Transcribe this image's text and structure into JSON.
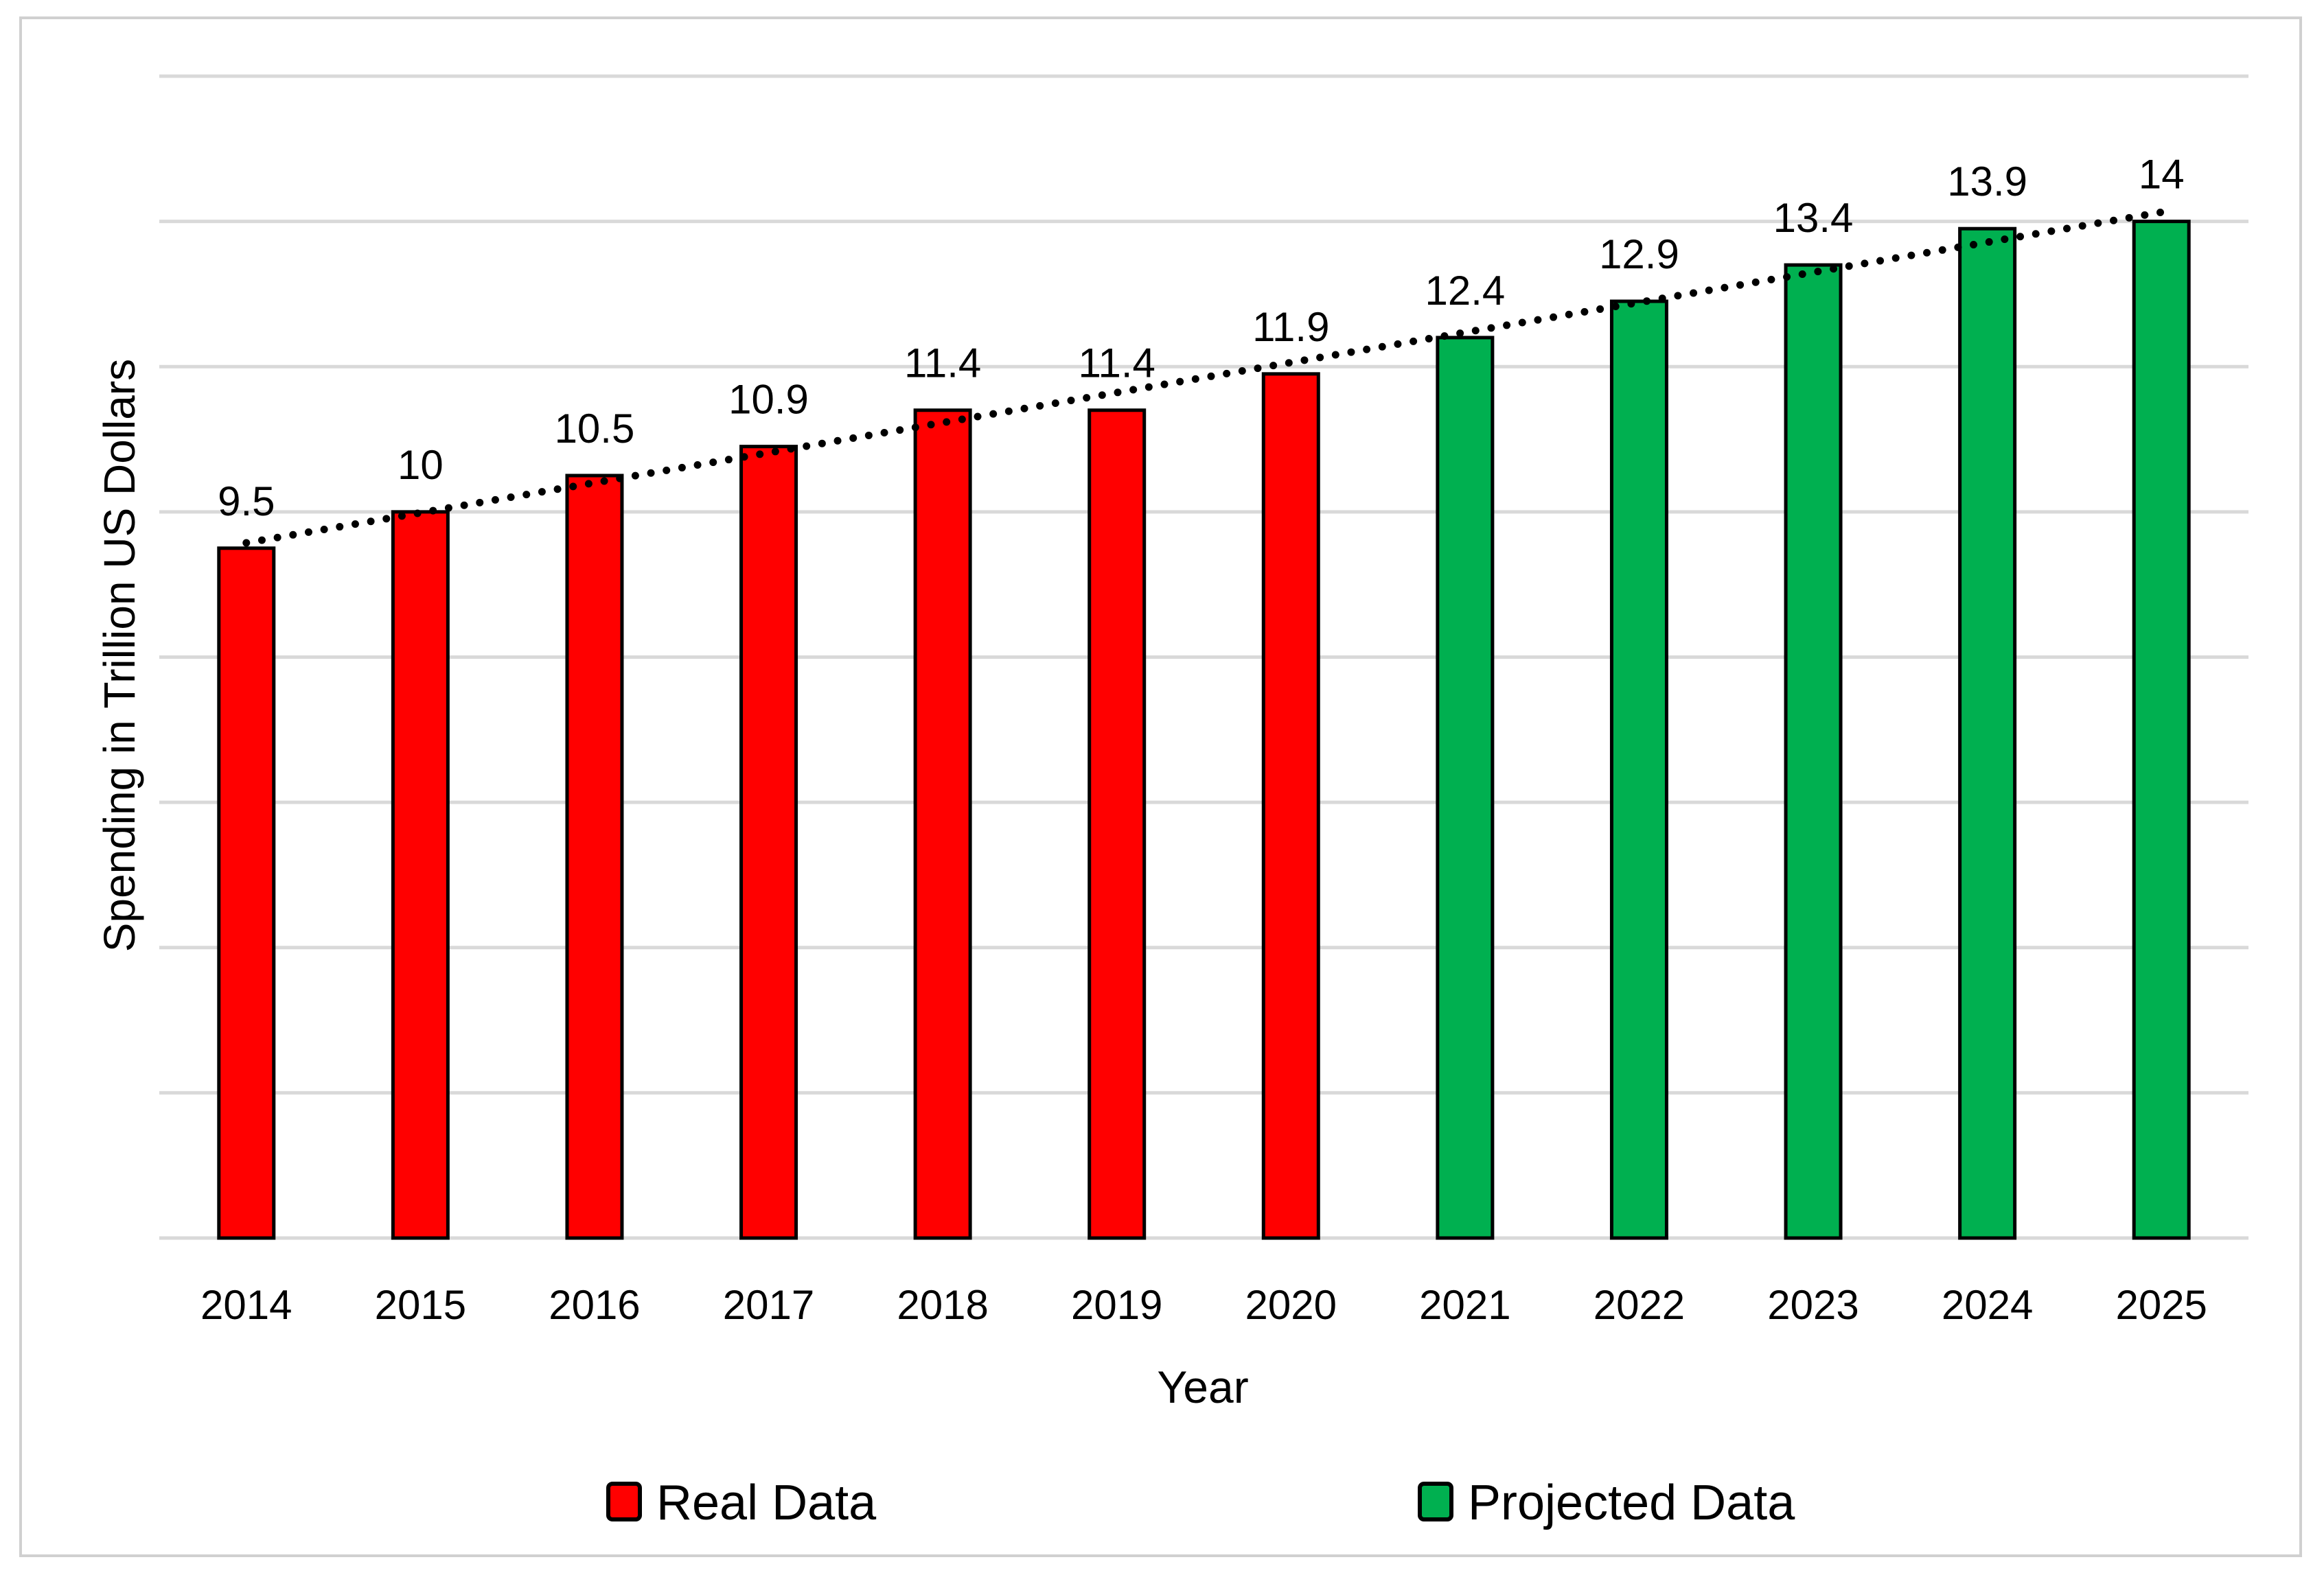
{
  "chart_data": {
    "type": "bar",
    "title": "",
    "xlabel": "Year",
    "ylabel": "Spending in Trillion US Dollars",
    "categories": [
      "2014",
      "2015",
      "2016",
      "2017",
      "2018",
      "2019",
      "2020",
      "2021",
      "2022",
      "2023",
      "2024",
      "2025"
    ],
    "values": [
      9.5,
      10,
      10.5,
      10.9,
      11.4,
      11.4,
      11.9,
      12.4,
      12.9,
      13.4,
      13.9,
      14
    ],
    "value_labels": [
      "9.5",
      "10",
      "10.5",
      "10.9",
      "11.4",
      "11.4",
      "11.9",
      "12.4",
      "12.9",
      "13.4",
      "13.9",
      "14"
    ],
    "bar_group": [
      "Real Data",
      "Real Data",
      "Real Data",
      "Real Data",
      "Real Data",
      "Real Data",
      "Real Data",
      "Projected Data",
      "Projected Data",
      "Projected Data",
      "Projected Data",
      "Projected Data"
    ],
    "series": [
      {
        "name": "Real Data",
        "color": "#ff0000"
      },
      {
        "name": "Projected Data",
        "color": "#00b050"
      }
    ],
    "ylim": [
      0,
      16
    ],
    "y_gridline_step": 2,
    "y_tick_labels_shown": false,
    "trendline": {
      "type": "linear",
      "style": "dotted",
      "color": "#000000"
    },
    "grid": true,
    "legend_position": "bottom"
  }
}
